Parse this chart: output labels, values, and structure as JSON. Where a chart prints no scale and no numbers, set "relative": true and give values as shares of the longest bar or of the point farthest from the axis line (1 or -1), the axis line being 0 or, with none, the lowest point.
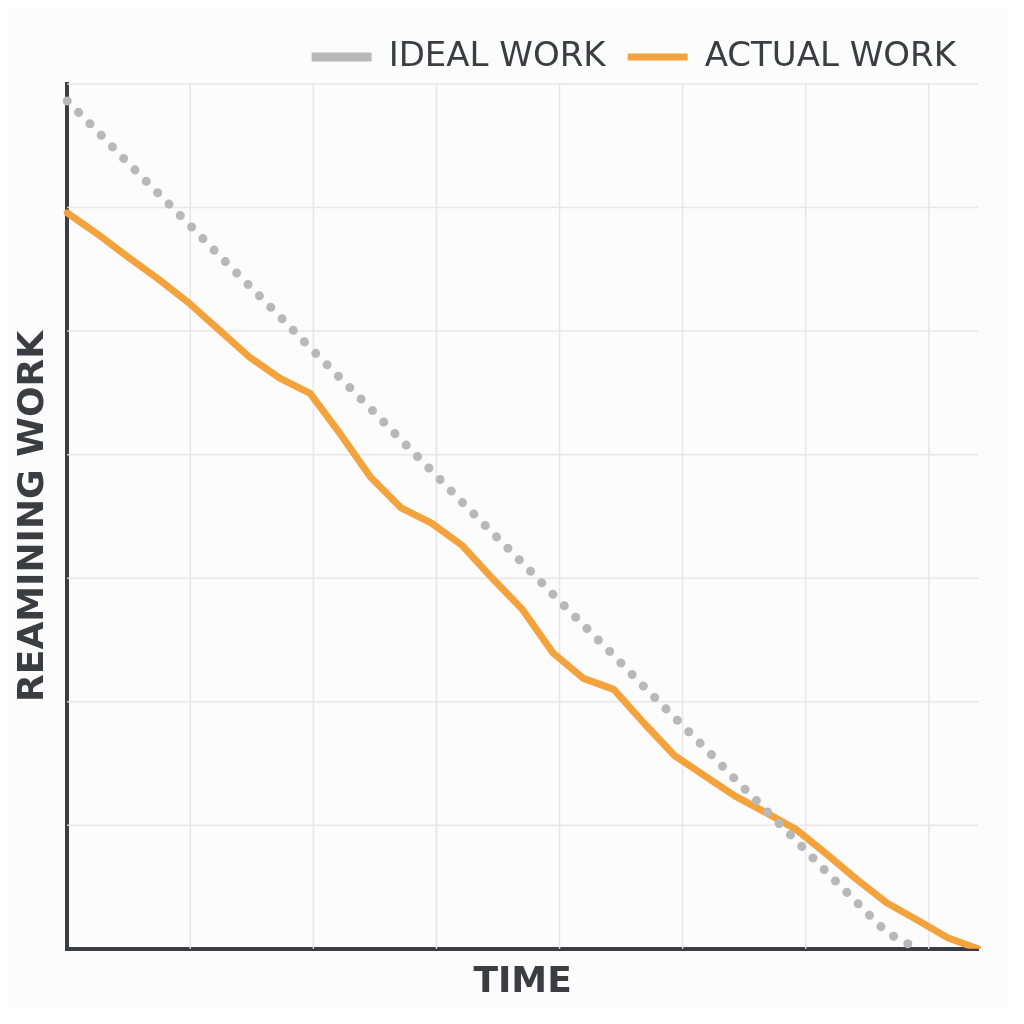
{
  "chart_data": {
    "type": "line",
    "xlabel": "TIME",
    "ylabel": "REAMINING WORK",
    "relative": true,
    "grid": true,
    "legend": "top right",
    "categories": [
      null,
      null,
      null,
      null,
      null,
      null,
      null,
      null,
      null,
      null,
      null,
      null,
      null,
      null,
      null,
      null,
      null,
      null,
      null,
      null,
      null,
      null,
      null,
      null,
      null,
      null,
      null,
      null,
      null,
      null,
      null
    ],
    "series": [
      {
        "name": "IDEAL WORK",
        "color": "#b8b8b8",
        "line_style": "dotted",
        "values": [
          1.0,
          0.964,
          0.927,
          0.891,
          0.855,
          0.818,
          0.782,
          0.746,
          0.709,
          0.673,
          0.637,
          0.6,
          0.564,
          0.527,
          0.491,
          0.455,
          0.418,
          0.382,
          0.346,
          0.309,
          0.273,
          0.237,
          0.2,
          0.164,
          0.128,
          0.091,
          0.055,
          0.019,
          0,
          null,
          null
        ]
      },
      {
        "name": "ACTUAL WORK",
        "color": "#f4a23c",
        "line_style": "solid",
        "values": [
          0.868,
          0.843,
          0.816,
          0.79,
          0.762,
          0.73,
          0.698,
          0.673,
          0.655,
          0.607,
          0.556,
          0.52,
          0.502,
          0.476,
          0.437,
          0.4,
          0.349,
          0.319,
          0.306,
          0.266,
          0.228,
          0.204,
          0.18,
          0.161,
          0.141,
          0.112,
          0.082,
          0.054,
          0.034,
          0.013,
          0
        ]
      }
    ]
  }
}
